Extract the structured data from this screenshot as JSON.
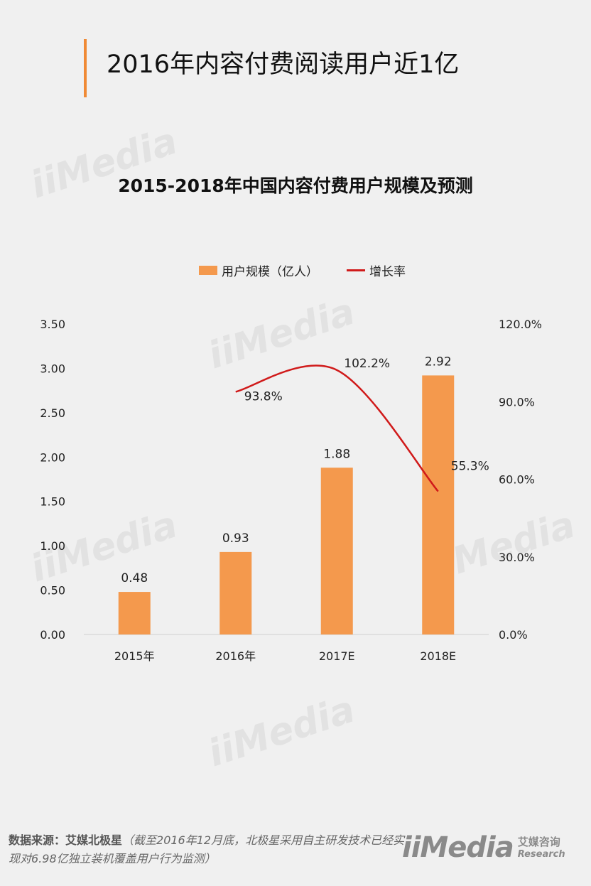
{
  "page": {
    "title": "2016年内容付费阅读用户近1亿"
  },
  "chart_data": {
    "type": "bar",
    "title": "2015-2018年中国内容付费用户规模及预测",
    "categories": [
      "2015年",
      "2016年",
      "2017E",
      "2018E"
    ],
    "series": [
      {
        "name": "用户规模（亿人）",
        "type": "bar",
        "axis": "left",
        "values": [
          0.48,
          0.93,
          1.88,
          2.92
        ],
        "labels": [
          "0.48",
          "0.93",
          "1.88",
          "2.92"
        ],
        "color": "#f4994d"
      },
      {
        "name": "增长率",
        "type": "line",
        "axis": "right",
        "values": [
          null,
          93.8,
          102.2,
          55.3
        ],
        "labels": [
          "",
          "93.8%",
          "102.2%",
          "55.3%"
        ],
        "color": "#d01a1a"
      }
    ],
    "ylim": [
      0,
      3.5
    ],
    "yticks": [
      "0.00",
      "0.50",
      "1.00",
      "1.50",
      "2.00",
      "2.50",
      "3.00",
      "3.50"
    ],
    "y2lim": [
      0,
      120
    ],
    "y2ticks": [
      "0.0%",
      "30.0%",
      "60.0%",
      "90.0%",
      "120.0%"
    ],
    "legend": "top-center",
    "grid": false
  },
  "source": {
    "head": "数据来源：艾媒北极星",
    "note": "（截至2016年12月底，北极星采用自主研发技术已经实现对6.98亿独立装机覆盖用户行为监测）"
  },
  "watermark": {
    "text": "iiMedia"
  },
  "logo": {
    "mark": "iiMedia",
    "cn": "艾媒咨询",
    "en": "Research"
  }
}
